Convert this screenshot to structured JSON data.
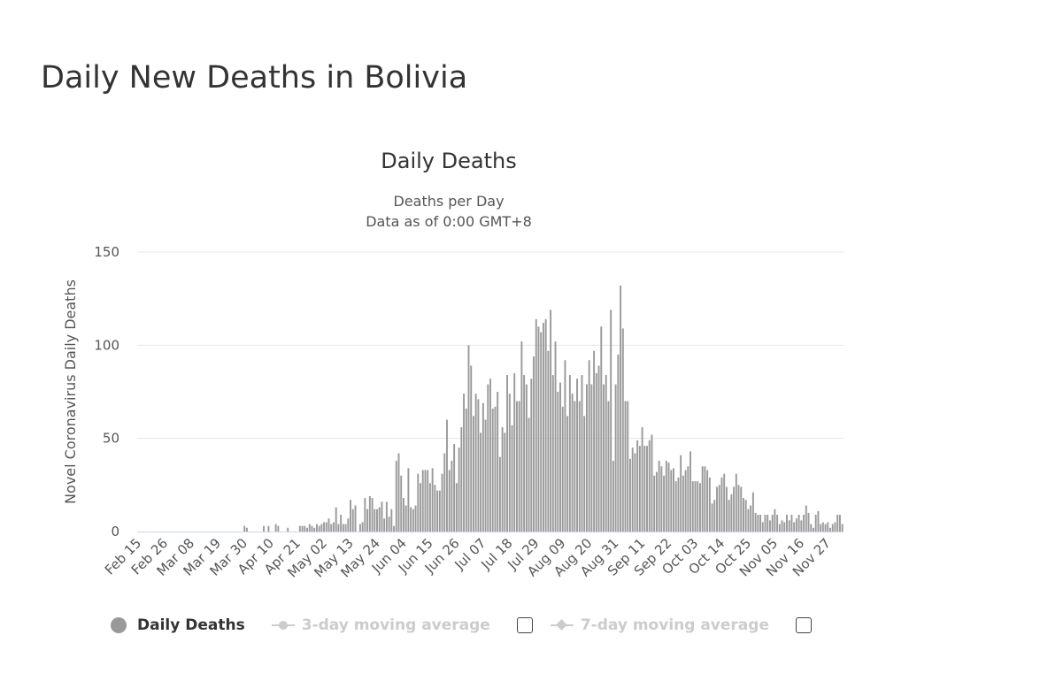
{
  "page": {
    "title": "Daily New Deaths in Bolivia"
  },
  "chart_data": {
    "type": "bar",
    "title": "Daily Deaths",
    "subtitle": [
      "Deaths per Day",
      "Data as of 0:00 GMT+8"
    ],
    "ylabel": "Novel Coronavirus Daily Deaths",
    "xlabel": "",
    "ylim": [
      0,
      150
    ],
    "yticks": [
      0,
      50,
      100,
      150
    ],
    "grid": true,
    "start_date": "Feb 15",
    "tick_every_days": 11,
    "xtick_labels": [
      "Feb 15",
      "Feb 26",
      "Mar 08",
      "Mar 19",
      "Mar 30",
      "Apr 10",
      "Apr 21",
      "May 02",
      "May 13",
      "May 24",
      "Jun 04",
      "Jun 15",
      "Jun 26",
      "Jul 07",
      "Jul 18",
      "Jul 29",
      "Aug 09",
      "Aug 20",
      "Aug 31",
      "Sep 11",
      "Sep 22",
      "Oct 03",
      "Oct 14",
      "Oct 25",
      "Nov 05",
      "Nov 16",
      "Nov 27"
    ],
    "series": [
      {
        "name": "Daily Deaths",
        "color": "#999999",
        "values": [
          0,
          0,
          0,
          0,
          0,
          0,
          0,
          0,
          0,
          0,
          0,
          0,
          0,
          0,
          0,
          0,
          0,
          0,
          0,
          0,
          0,
          0,
          0,
          0,
          0,
          0,
          0,
          0,
          0,
          0,
          0,
          0,
          0,
          0,
          0,
          0,
          0,
          0,
          0,
          0,
          0,
          0,
          0,
          0,
          3,
          2,
          0,
          0,
          0,
          0,
          0,
          0,
          3,
          0,
          3,
          0,
          0,
          4,
          3,
          0,
          0,
          0,
          2,
          0,
          0,
          0,
          0,
          3,
          3,
          3,
          2,
          4,
          3,
          2,
          4,
          3,
          4,
          5,
          5,
          7,
          4,
          5,
          13,
          4,
          9,
          4,
          4,
          7,
          17,
          12,
          14,
          0,
          4,
          5,
          18,
          12,
          19,
          18,
          12,
          12,
          13,
          16,
          7,
          16,
          8,
          12,
          3,
          38,
          42,
          30,
          18,
          14,
          34,
          13,
          12,
          14,
          31,
          26,
          33,
          33,
          33,
          26,
          34,
          25,
          22,
          22,
          31,
          42,
          60,
          33,
          38,
          47,
          26,
          45,
          56,
          74,
          66,
          100,
          89,
          62,
          74,
          71,
          53,
          69,
          60,
          79,
          82,
          66,
          67,
          75,
          40,
          56,
          53,
          84,
          74,
          57,
          85,
          70,
          70,
          102,
          84,
          79,
          61,
          82,
          94,
          114,
          110,
          107,
          112,
          114,
          97,
          119,
          84,
          102,
          75,
          80,
          67,
          92,
          62,
          84,
          74,
          70,
          82,
          70,
          84,
          62,
          79,
          92,
          79,
          97,
          85,
          89,
          110,
          79,
          84,
          70,
          119,
          38,
          79,
          95,
          132,
          109,
          70,
          70,
          39,
          45,
          42,
          49,
          46,
          56,
          46,
          46,
          49,
          52,
          30,
          32,
          38,
          35,
          30,
          38,
          37,
          33,
          34,
          27,
          29,
          41,
          30,
          33,
          35,
          43,
          27,
          27,
          27,
          26,
          35,
          35,
          33,
          29,
          15,
          17,
          24,
          25,
          29,
          31,
          24,
          17,
          20,
          24,
          31,
          25,
          24,
          18,
          17,
          12,
          14,
          21,
          10,
          9,
          9,
          5,
          9,
          9,
          6,
          9,
          12,
          9,
          4,
          6,
          5,
          9,
          6,
          9,
          5,
          7,
          9,
          6,
          9,
          14,
          10,
          4,
          2,
          9,
          11,
          4,
          5,
          4,
          5,
          2,
          4,
          5,
          9,
          9,
          4
        ]
      }
    ],
    "legend": {
      "placement": "bottom-left",
      "items": [
        {
          "label": "Daily Deaths",
          "active": true
        },
        {
          "label": "3-day moving average",
          "active": false
        },
        {
          "label": "7-day moving average",
          "active": false
        }
      ]
    }
  }
}
